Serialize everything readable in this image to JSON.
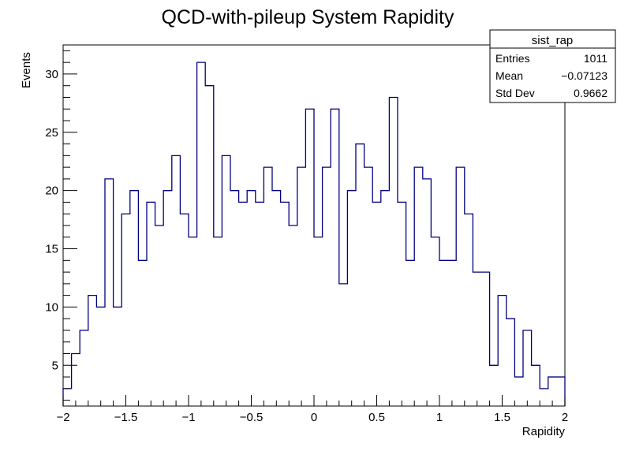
{
  "chart_data": {
    "type": "bar",
    "style": "step-histogram",
    "title": "QCD-with-pileup System Rapidity",
    "xlabel": "Rapidity",
    "ylabel": "Events",
    "xlim": [
      -2,
      2
    ],
    "ylim": [
      1.5,
      32.5
    ],
    "bin_width": 0.0666667,
    "x_ticks": [
      {
        "value": -2,
        "label": "−2"
      },
      {
        "value": -1.5,
        "label": "−1.5"
      },
      {
        "value": -1,
        "label": "−1"
      },
      {
        "value": -0.5,
        "label": "−0.5"
      },
      {
        "value": 0,
        "label": "0"
      },
      {
        "value": 0.5,
        "label": "0.5"
      },
      {
        "value": 1,
        "label": "1"
      },
      {
        "value": 1.5,
        "label": "1.5"
      },
      {
        "value": 2,
        "label": "2"
      }
    ],
    "y_ticks": [
      {
        "value": 5,
        "label": "5"
      },
      {
        "value": 10,
        "label": "10"
      },
      {
        "value": 15,
        "label": "15"
      },
      {
        "value": 20,
        "label": "20"
      },
      {
        "value": 25,
        "label": "25"
      },
      {
        "value": 30,
        "label": "30"
      }
    ],
    "values": [
      3,
      6,
      8,
      11,
      10,
      21,
      10,
      18,
      20,
      14,
      19,
      17,
      20,
      23,
      18,
      16,
      31,
      29,
      16,
      23,
      20,
      19,
      20,
      19,
      22,
      20,
      19,
      17,
      22,
      27,
      16,
      22,
      27,
      12,
      20,
      24,
      22,
      19,
      20,
      28,
      19,
      14,
      22,
      21,
      16,
      14,
      14,
      22,
      18,
      13,
      13,
      5,
      11,
      9,
      4,
      8,
      5,
      3,
      4,
      4
    ],
    "line_color": "#000080",
    "stats_box": {
      "name": "sist_rap",
      "rows": [
        {
          "label": "Entries",
          "value": "1011"
        },
        {
          "label": "Mean",
          "value": "−0.07123"
        },
        {
          "label": "Std Dev",
          "value": "0.9662"
        }
      ]
    }
  }
}
